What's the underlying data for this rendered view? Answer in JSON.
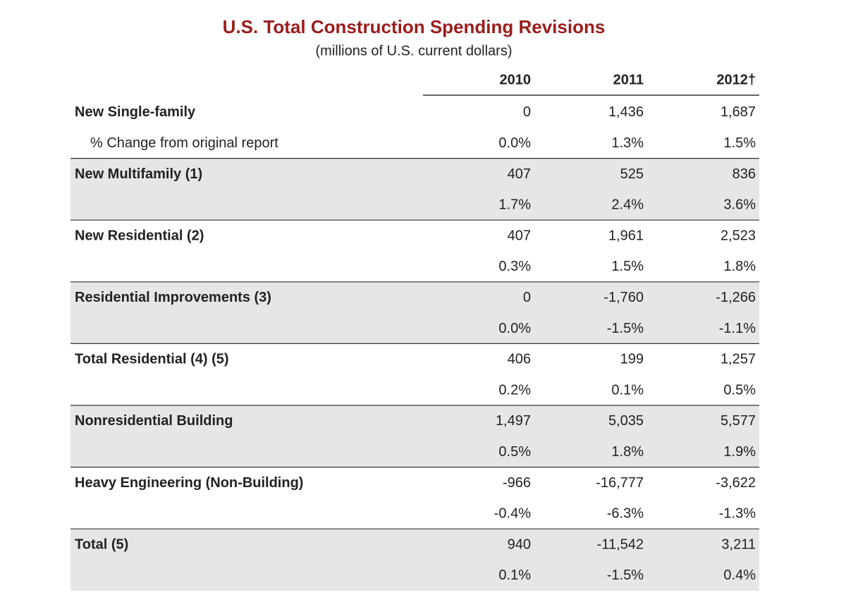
{
  "title": "U.S. Total Construction Spending Revisions",
  "subtitle": "(millions of U.S. current dollars)",
  "table": {
    "columns": [
      "2010",
      "2011",
      "2012†"
    ],
    "groups": [
      {
        "label": "New Single-family",
        "values": [
          "0",
          "1,436",
          "1,687"
        ],
        "sub_label": "% Change from original report",
        "sub_values": [
          "0.0%",
          "1.3%",
          "1.5%"
        ]
      },
      {
        "label": "New Multifamily (1)",
        "values": [
          "407",
          "525",
          "836"
        ],
        "sub_values": [
          "1.7%",
          "2.4%",
          "3.6%"
        ]
      },
      {
        "label": "New Residential (2)",
        "values": [
          "407",
          "1,961",
          "2,523"
        ],
        "sub_values": [
          "0.3%",
          "1.5%",
          "1.8%"
        ]
      },
      {
        "label": "Residential Improvements (3)",
        "values": [
          "0",
          "-1,760",
          "-1,266"
        ],
        "sub_values": [
          "0.0%",
          "-1.5%",
          "-1.1%"
        ]
      },
      {
        "label": "Total Residential (4) (5)",
        "values": [
          "406",
          "199",
          "1,257"
        ],
        "sub_values": [
          "0.2%",
          "0.1%",
          "0.5%"
        ]
      },
      {
        "label": "Nonresidential Building",
        "values": [
          "1,497",
          "5,035",
          "5,577"
        ],
        "sub_values": [
          "0.5%",
          "1.8%",
          "1.9%"
        ]
      },
      {
        "label": "Heavy Engineering (Non-Building)",
        "values": [
          "-966",
          "-16,777",
          "-3,622"
        ],
        "sub_values": [
          "-0.4%",
          "-6.3%",
          "-1.3%"
        ]
      },
      {
        "label": "Total (5)",
        "values": [
          "940",
          "-11,542",
          "3,211"
        ],
        "sub_values": [
          "0.1%",
          "-1.5%",
          "0.4%"
        ]
      }
    ]
  }
}
